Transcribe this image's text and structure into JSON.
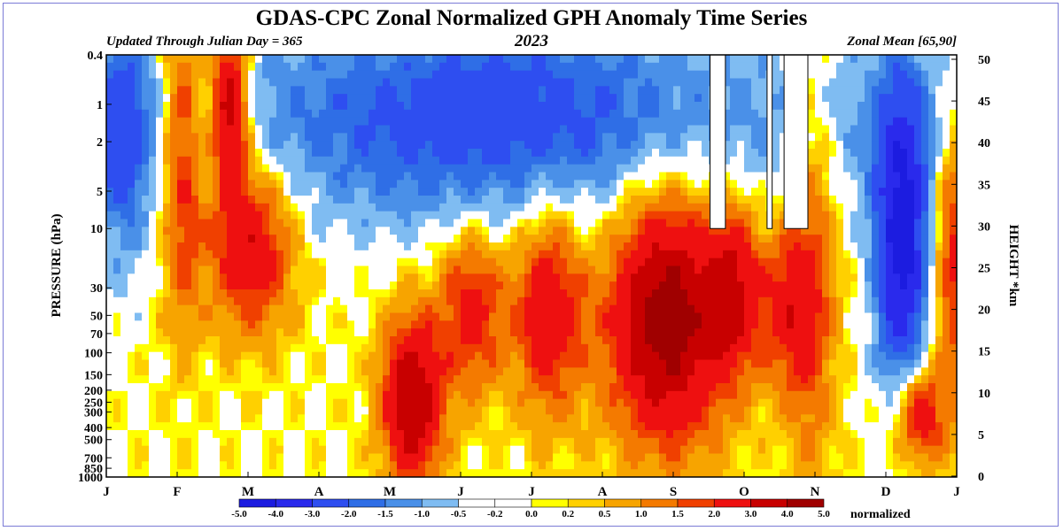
{
  "header": {
    "title": "GDAS-CPC Zonal Normalized GPH Anomaly Time Series",
    "updated": "Updated Through Julian Day = 365",
    "year": "2023",
    "region": "Zonal Mean [65,90]"
  },
  "chart_data": {
    "type": "heatmap",
    "title": "GDAS-CPC Zonal Normalized GPH Anomaly Time Series",
    "xlabel": "",
    "ylabel": "PRESSURE (hPa)",
    "y2label": "HEIGHT *km",
    "x_ticks": [
      "J",
      "F",
      "M",
      "A",
      "M",
      "J",
      "J",
      "A",
      "S",
      "O",
      "N",
      "D",
      "J"
    ],
    "y_ticks": [
      "0.4",
      "1",
      "2",
      "5",
      "10",
      "30",
      "50",
      "70",
      "100",
      "150",
      "200",
      "250",
      "300",
      "400",
      "500",
      "700",
      "850",
      "1000"
    ],
    "y2_ticks": [
      "50",
      "45",
      "40",
      "35",
      "30",
      "25",
      "20",
      "15",
      "10",
      "5",
      "0"
    ],
    "y_scale": "log",
    "colorbar": {
      "label": "normalized",
      "ticks": [
        "-5.0",
        "-4.0",
        "-3.0",
        "-2.0",
        "-1.5",
        "-1.0",
        "-0.5",
        "-0.2",
        "0.0",
        "0.2",
        "0.5",
        "1.0",
        "1.5",
        "2.0",
        "3.0",
        "4.0",
        "5.0"
      ],
      "colors": [
        "#1c1ce0",
        "#2a2aec",
        "#2e4ef0",
        "#2f6ee6",
        "#4a90e8",
        "#7fbcf2",
        "#ffffff",
        "#ffffff",
        "#ffff00",
        "#ffd000",
        "#f7a400",
        "#f47a00",
        "#f04000",
        "#ee1010",
        "#c80000",
        "#a00000"
      ]
    },
    "missing_data_periods": [
      {
        "start_month": "S",
        "top_hPa": 10
      },
      {
        "start_month": "O",
        "top_hPa": 10
      },
      {
        "start_month": "O",
        "top_hPa": 10
      }
    ],
    "anomaly_bands": [
      {
        "period": "Jan-mid Feb",
        "level": "stratosphere",
        "value": -1.5
      },
      {
        "period": "early Mar",
        "level": "upper stratosphere",
        "value": 4.0
      },
      {
        "period": "Mar",
        "level": "10-50 hPa",
        "value": 2.0
      },
      {
        "period": "Apr-Jun",
        "level": "upper stratosphere",
        "value": -2.0
      },
      {
        "period": "May",
        "level": "troposphere",
        "value": 3.0
      },
      {
        "period": "Jun-Jul",
        "level": "lower stratosphere",
        "value": 1.5
      },
      {
        "period": "Aug-Sep",
        "level": "10-500 hPa",
        "value": 3.0
      },
      {
        "period": "Nov-Dec",
        "level": "stratosphere",
        "value": -3.0
      },
      {
        "period": "Dec",
        "level": "troposphere",
        "value": 2.0
      }
    ]
  }
}
